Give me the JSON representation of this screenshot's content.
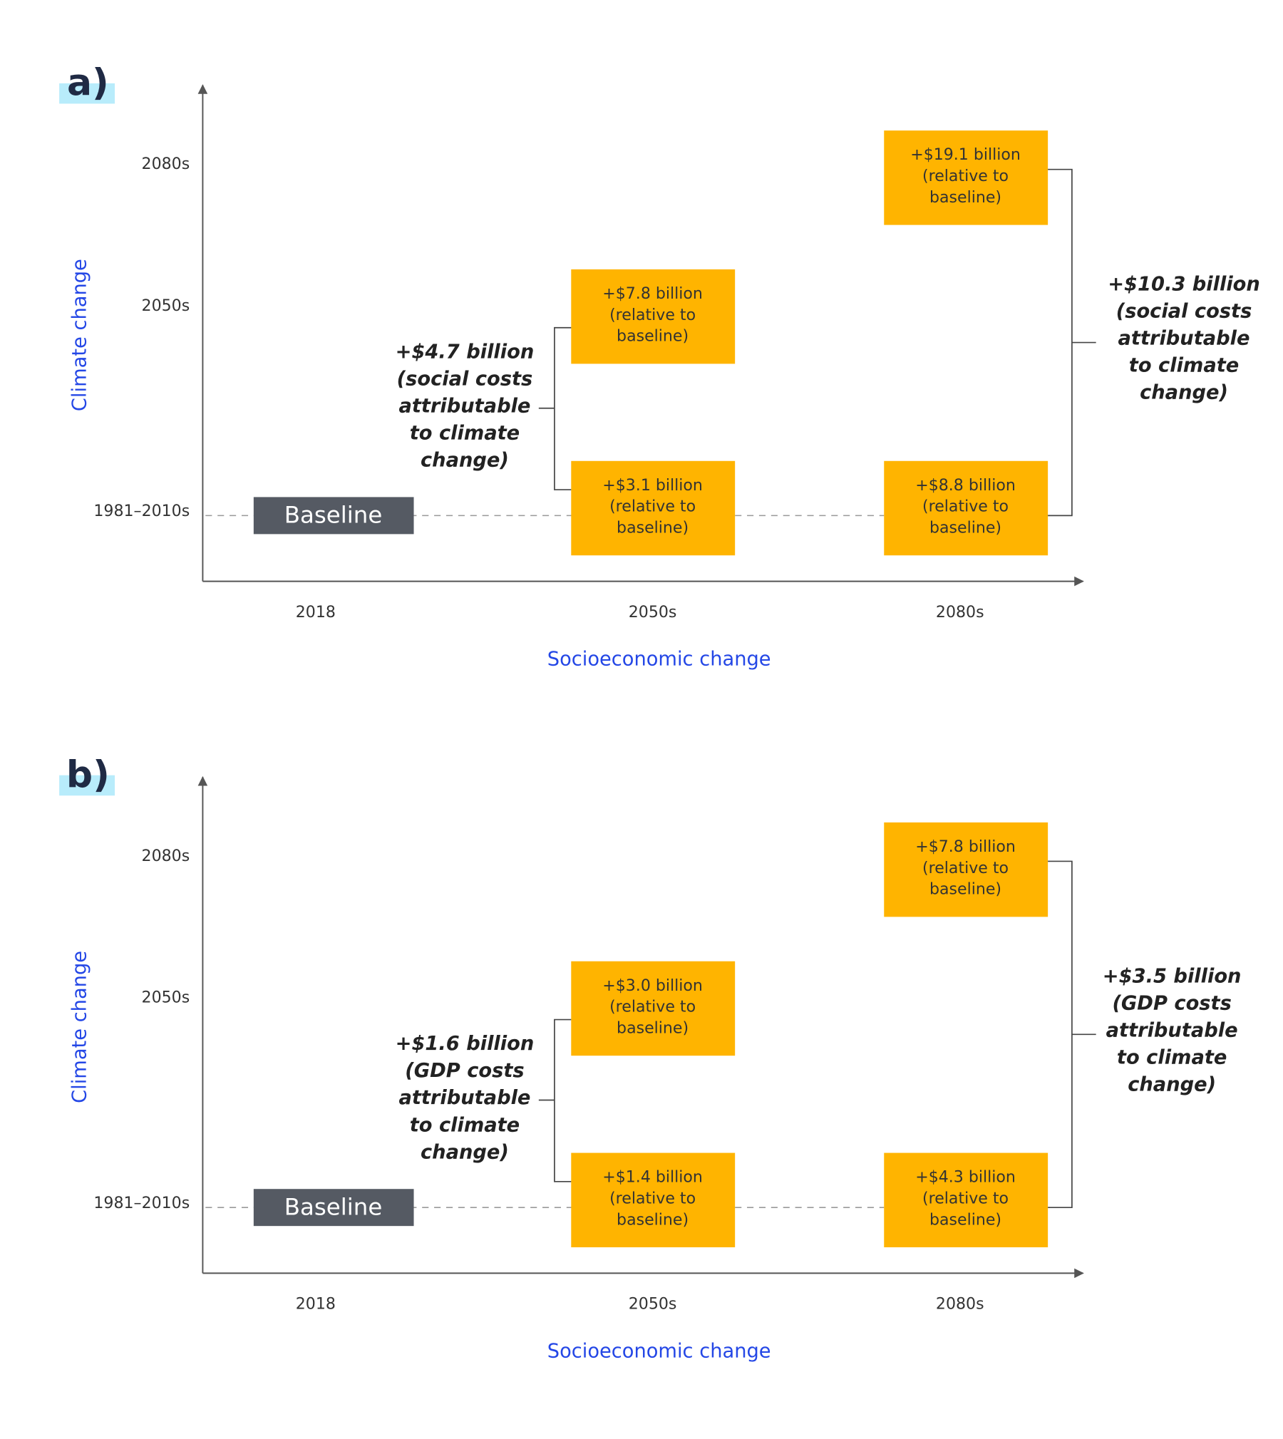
{
  "panels": [
    {
      "label": "a)",
      "y_axis_label": "Climate change",
      "x_axis_label": "Socioeconomic change",
      "y_ticks": [
        "2080s",
        "2050s",
        "1981–2010s"
      ],
      "x_ticks": [
        "2018",
        "2050s",
        "2080s"
      ],
      "baseline": "Baseline",
      "boxes": [
        {
          "lines": [
            "+$19.1 billion",
            "(relative to",
            "baseline)"
          ]
        },
        {
          "lines": [
            "+$7.8 billion",
            "(relative to",
            "baseline)"
          ]
        },
        {
          "lines": [
            "+$3.1 billion",
            "(relative to",
            "baseline)"
          ]
        },
        {
          "lines": [
            "+$8.8 billion",
            "(relative to",
            "baseline)"
          ]
        }
      ],
      "left_annotation": [
        "+$4.7 billion",
        "(social costs",
        "attributable",
        "to climate",
        "change)"
      ],
      "right_annotation": [
        "+$10.3 billion",
        "(social costs",
        "attributable",
        "to climate",
        "change)"
      ]
    },
    {
      "label": "b)",
      "y_axis_label": "Climate change",
      "x_axis_label": "Socioeconomic change",
      "y_ticks": [
        "2080s",
        "2050s",
        "1981–2010s"
      ],
      "x_ticks": [
        "2018",
        "2050s",
        "2080s"
      ],
      "baseline": "Baseline",
      "boxes": [
        {
          "lines": [
            "+$7.8 billion",
            "(relative to",
            "baseline)"
          ]
        },
        {
          "lines": [
            "+$3.0 billion",
            "(relative to",
            "baseline)"
          ]
        },
        {
          "lines": [
            "+$1.4 billion",
            "(relative to",
            "baseline)"
          ]
        },
        {
          "lines": [
            "+$4.3 billion",
            "(relative to",
            "baseline)"
          ]
        }
      ],
      "left_annotation": [
        "+$1.6 billion",
        "(GDP costs",
        "attributable",
        "to climate",
        "change)"
      ],
      "right_annotation": [
        "+$3.5 billion",
        "(GDP costs",
        "attributable",
        "to climate",
        "change)"
      ]
    }
  ]
}
